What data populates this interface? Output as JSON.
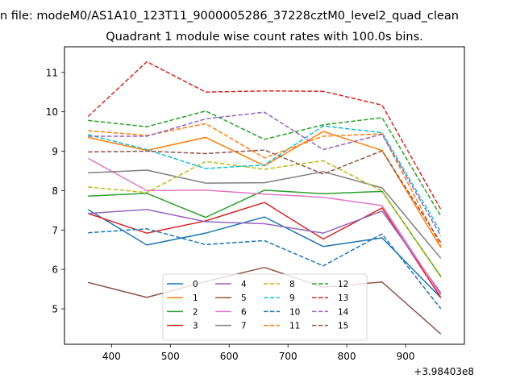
{
  "chart_data": {
    "type": "line",
    "suptitle": "n file: modeM0/AS1A10_123T11_9000005286_37228cztM0_level2_quad_clean",
    "title": "Quadrant 1 module wise count rates with 100.0s bins.",
    "xlabel": "",
    "ylabel": "",
    "x_offset_label": "+3.98403e8",
    "xlim": [
      320,
      1000
    ],
    "ylim": [
      4.1,
      11.65
    ],
    "x_ticks": [
      400,
      500,
      600,
      700,
      800,
      900
    ],
    "x_tick_labels": [
      "400",
      "500",
      "600",
      "700",
      "800",
      "900"
    ],
    "y_ticks": [
      5,
      6,
      7,
      8,
      9,
      10,
      11
    ],
    "y_tick_labels": [
      "5",
      "6",
      "7",
      "8",
      "9",
      "10",
      "11"
    ],
    "legend_location": "lower-center",
    "legend_columns": 4,
    "x": [
      360,
      460,
      560,
      660,
      760,
      860,
      960
    ],
    "series": [
      {
        "name": "0",
        "color": "#1f77b4",
        "dash": "solid",
        "values": [
          7.52,
          6.62,
          6.92,
          7.33,
          6.58,
          6.8,
          5.28
        ]
      },
      {
        "name": "1",
        "color": "#ff7f0e",
        "dash": "solid",
        "values": [
          9.35,
          9.02,
          9.35,
          8.63,
          9.5,
          9.02,
          6.55
        ]
      },
      {
        "name": "2",
        "color": "#2ca02c",
        "dash": "solid",
        "values": [
          7.86,
          7.93,
          7.32,
          8.01,
          7.92,
          7.98,
          5.82
        ]
      },
      {
        "name": "3",
        "color": "#d62728",
        "dash": "solid",
        "values": [
          7.42,
          6.92,
          7.23,
          7.7,
          6.77,
          7.56,
          5.28
        ]
      },
      {
        "name": "4",
        "color": "#9467bd",
        "dash": "solid",
        "values": [
          7.42,
          7.52,
          7.21,
          7.16,
          6.92,
          7.48,
          5.4
        ]
      },
      {
        "name": "5",
        "color": "#8c564b",
        "dash": "solid",
        "values": [
          5.67,
          5.29,
          5.69,
          6.05,
          5.55,
          5.68,
          4.36
        ]
      },
      {
        "name": "6",
        "color": "#e377c2",
        "dash": "solid",
        "values": [
          8.82,
          8.0,
          8.01,
          7.91,
          7.83,
          7.62,
          5.35
        ]
      },
      {
        "name": "7",
        "color": "#7f7f7f",
        "dash": "solid",
        "values": [
          8.45,
          8.52,
          8.19,
          8.2,
          8.48,
          8.07,
          6.28
        ]
      },
      {
        "name": "8",
        "color": "#bcbd22",
        "dash": "dashed",
        "values": [
          8.09,
          7.95,
          8.74,
          8.54,
          8.76,
          7.99,
          5.8
        ]
      },
      {
        "name": "9",
        "color": "#17becf",
        "dash": "dashed",
        "values": [
          9.42,
          9.04,
          8.56,
          8.65,
          9.64,
          9.47,
          6.95
        ]
      },
      {
        "name": "10",
        "color": "#1f77b4",
        "dash": "dashed",
        "values": [
          6.93,
          7.03,
          6.63,
          6.73,
          6.09,
          6.9,
          5.0
        ]
      },
      {
        "name": "11",
        "color": "#ff7f0e",
        "dash": "dashed",
        "values": [
          9.52,
          9.4,
          9.7,
          8.83,
          9.38,
          9.44,
          6.59
        ]
      },
      {
        "name": "12",
        "color": "#2ca02c",
        "dash": "dashed",
        "values": [
          9.78,
          9.62,
          10.02,
          9.3,
          9.67,
          9.85,
          7.35
        ]
      },
      {
        "name": "13",
        "color": "#d62728",
        "dash": "dashed",
        "values": [
          9.88,
          11.27,
          10.5,
          10.53,
          10.52,
          10.17,
          7.52
        ]
      },
      {
        "name": "14",
        "color": "#9467bd",
        "dash": "dashed",
        "values": [
          9.38,
          9.38,
          9.82,
          9.99,
          9.04,
          9.43,
          6.85
        ]
      },
      {
        "name": "15",
        "color": "#8c564b",
        "dash": "dashed",
        "values": [
          8.98,
          9.0,
          8.94,
          9.03,
          8.42,
          9.01,
          6.68
        ]
      }
    ]
  }
}
